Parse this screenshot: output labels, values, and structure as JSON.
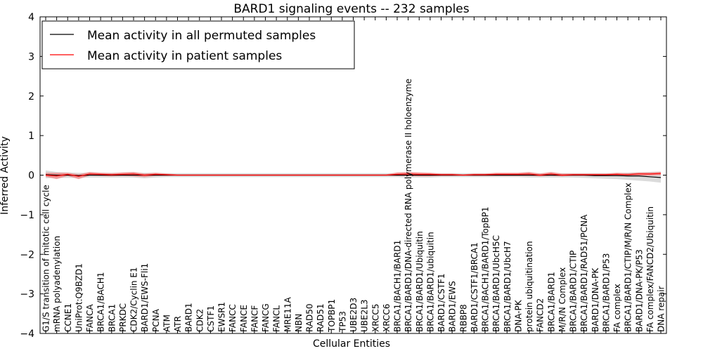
{
  "chart_data": {
    "type": "line",
    "title": "BARD1 signaling events -- 232 samples",
    "xlabel": "Cellular Entities",
    "ylabel": "Inferred Activity",
    "ylim": [
      -4,
      4
    ],
    "yticks": [
      -4,
      -3,
      -2,
      -1,
      0,
      1,
      2,
      3,
      4
    ],
    "ytick_labels": [
      "−4",
      "−3",
      "−2",
      "−1",
      "0",
      "1",
      "2",
      "3",
      "4"
    ],
    "legend_position": "top-left",
    "categories": [
      "G1/S transition of mitotic cell cycle",
      "mRNA polyadenylation",
      "CCNE1",
      "UniProt:Q9BZD1",
      "FANCA",
      "BRCA1/BACH1",
      "BRCA1",
      "PRKDC",
      "CDK2/Cyclin E1",
      "BARD1/EWS-Fli1",
      "PCNA",
      "ATM",
      "ATR",
      "BARD1",
      "CDK2",
      "CSTF1",
      "EWSR1",
      "FANCC",
      "FANCE",
      "FANCF",
      "FANCG",
      "FANCL",
      "MRE11A",
      "NBN",
      "RAD50",
      "RAD51",
      "TOPBP1",
      "TP53",
      "UBE2D3",
      "UBE2L3",
      "XRCC5",
      "XRCC6",
      "BRCA1/BACH1/BARD1",
      "BRCA1/BARD1/DNA-directed RNA polymerase II holoenzyme",
      "BRCA1/BARD1/Ubiquitin",
      "BRCA1/BARD1/ubiquitin",
      "BARD1/CSTF1",
      "BARD1/EWS",
      "RBBP8",
      "BARD1/CSTF1/BRCA1",
      "BRCA1/BACH1/BARD1/TopBP1",
      "BRCA1/BARD1/UbcH5C",
      "BRCA1/BARD1/UbcH7",
      "DNA-PK",
      "protein ubiquitination",
      "FANCD2",
      "BRCA1/BARD1",
      "M/R/N Complex",
      "BRCA1/BARD1/CTIP",
      "BRCA1/BARD1/RAD51/PCNA",
      "BARD1/DNA-PK",
      "BRCA1/BARD1/P53",
      "FA complex",
      "BRCA1/BARD1/CTIP/M/R/N Complex",
      "BARD1/DNA-PK/P53",
      "FA complex/FANCD2/Ubiquitin",
      "DNA repair"
    ],
    "series": [
      {
        "name": "Mean activity in all permuted samples",
        "color": "#000000",
        "band_color": "#cccccc",
        "values": [
          0.01,
          0.0,
          0.0,
          -0.01,
          0.0,
          0.0,
          0.0,
          0.0,
          0.0,
          0.0,
          0.0,
          0.0,
          0.0,
          0.0,
          0.0,
          0.0,
          0.0,
          0.0,
          0.0,
          0.0,
          0.0,
          0.0,
          0.0,
          0.0,
          0.0,
          0.0,
          0.0,
          0.0,
          0.0,
          0.0,
          0.0,
          0.0,
          0.0,
          0.0,
          0.0,
          0.0,
          0.0,
          0.0,
          0.0,
          0.0,
          0.0,
          0.0,
          0.0,
          0.0,
          0.0,
          0.0,
          0.0,
          0.0,
          0.0,
          0.0,
          -0.01,
          -0.01,
          -0.01,
          -0.02,
          -0.02,
          -0.04,
          -0.06
        ],
        "lower": [
          -0.08,
          -0.07,
          -0.07,
          -0.07,
          -0.06,
          -0.06,
          -0.06,
          -0.06,
          -0.06,
          -0.08,
          -0.06,
          -0.05,
          -0.05,
          -0.05,
          -0.05,
          -0.05,
          -0.05,
          -0.05,
          -0.05,
          -0.05,
          -0.05,
          -0.05,
          -0.05,
          -0.05,
          -0.05,
          -0.05,
          -0.05,
          -0.05,
          -0.05,
          -0.05,
          -0.05,
          -0.05,
          -0.05,
          -0.06,
          -0.06,
          -0.06,
          -0.05,
          -0.05,
          -0.05,
          -0.05,
          -0.05,
          -0.05,
          -0.05,
          -0.05,
          -0.06,
          -0.06,
          -0.06,
          -0.06,
          -0.06,
          -0.07,
          -0.08,
          -0.09,
          -0.1,
          -0.12,
          -0.14,
          -0.16,
          -0.19
        ],
        "upper": [
          0.12,
          0.08,
          0.07,
          0.06,
          0.06,
          0.06,
          0.06,
          0.06,
          0.06,
          0.06,
          0.06,
          0.05,
          0.05,
          0.05,
          0.05,
          0.05,
          0.05,
          0.05,
          0.05,
          0.05,
          0.05,
          0.05,
          0.05,
          0.05,
          0.05,
          0.05,
          0.05,
          0.05,
          0.05,
          0.05,
          0.05,
          0.05,
          0.05,
          0.05,
          0.05,
          0.05,
          0.05,
          0.05,
          0.05,
          0.05,
          0.05,
          0.05,
          0.05,
          0.05,
          0.05,
          0.05,
          0.05,
          0.05,
          0.05,
          0.05,
          0.05,
          0.05,
          0.05,
          0.06,
          0.07,
          0.08,
          0.09
        ]
      },
      {
        "name": "Mean activity in patient samples",
        "color": "#ff0000",
        "band_color": "#f08080",
        "values": [
          0.0,
          -0.02,
          0.02,
          -0.03,
          0.03,
          0.02,
          0.01,
          0.02,
          0.03,
          0.0,
          0.02,
          0.01,
          0.0,
          0.0,
          0.0,
          0.0,
          0.0,
          0.0,
          0.0,
          0.0,
          0.0,
          0.0,
          0.0,
          0.0,
          0.0,
          0.0,
          0.0,
          0.0,
          0.0,
          0.0,
          0.0,
          0.0,
          0.02,
          0.03,
          0.02,
          0.02,
          0.01,
          0.01,
          0.0,
          0.01,
          0.01,
          0.02,
          0.02,
          0.02,
          0.03,
          0.0,
          0.03,
          0.0,
          0.01,
          0.01,
          0.01,
          0.01,
          0.02,
          0.01,
          0.03,
          0.03,
          0.04
        ],
        "lower": [
          -0.04,
          -0.1,
          -0.02,
          -0.1,
          -0.01,
          -0.02,
          -0.03,
          -0.02,
          -0.03,
          -0.05,
          -0.02,
          -0.02,
          -0.01,
          -0.01,
          -0.01,
          -0.01,
          -0.01,
          -0.01,
          -0.01,
          -0.01,
          -0.01,
          -0.01,
          -0.01,
          -0.01,
          -0.01,
          -0.01,
          -0.01,
          -0.01,
          -0.01,
          -0.01,
          -0.01,
          -0.01,
          -0.02,
          -0.02,
          -0.03,
          -0.03,
          -0.02,
          -0.02,
          -0.01,
          -0.02,
          -0.02,
          -0.02,
          -0.02,
          -0.02,
          -0.02,
          -0.03,
          -0.02,
          -0.03,
          -0.02,
          -0.02,
          -0.02,
          -0.02,
          -0.02,
          -0.02,
          -0.01,
          -0.01,
          0.0
        ],
        "upper": [
          0.06,
          0.06,
          0.06,
          0.02,
          0.08,
          0.06,
          0.05,
          0.07,
          0.08,
          0.04,
          0.06,
          0.04,
          0.02,
          0.02,
          0.02,
          0.02,
          0.02,
          0.02,
          0.02,
          0.02,
          0.02,
          0.02,
          0.02,
          0.02,
          0.02,
          0.02,
          0.02,
          0.02,
          0.02,
          0.02,
          0.02,
          0.02,
          0.07,
          0.08,
          0.07,
          0.06,
          0.04,
          0.04,
          0.02,
          0.04,
          0.04,
          0.06,
          0.06,
          0.06,
          0.08,
          0.04,
          0.08,
          0.04,
          0.04,
          0.04,
          0.04,
          0.04,
          0.06,
          0.05,
          0.07,
          0.07,
          0.08
        ]
      }
    ]
  }
}
